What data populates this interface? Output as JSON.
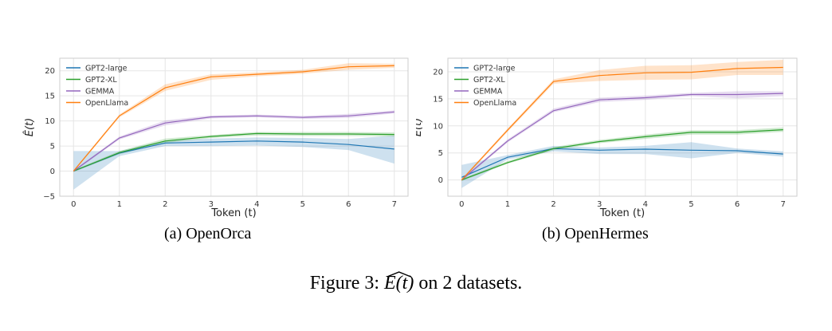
{
  "figure": {
    "caption_prefix": "Figure 3:",
    "caption_math": "E(t)",
    "caption_suffix": "on 2 datasets."
  },
  "chart_data": [
    {
      "type": "line",
      "subcaption": "(a) OpenOrca",
      "xlabel": "Token (t)",
      "ylabel": "Ê(t)",
      "x": [
        0,
        1,
        2,
        3,
        4,
        5,
        6,
        7
      ],
      "xlim": [
        -0.3,
        7.3
      ],
      "ylim": [
        -5,
        22.5
      ],
      "yticks": [
        -5,
        0,
        5,
        10,
        15,
        20
      ],
      "yticklabels": [
        "−5",
        "0",
        "5",
        "10",
        "15",
        "20"
      ],
      "xticks": [
        0,
        1,
        2,
        3,
        4,
        5,
        6,
        7
      ],
      "grid": true,
      "legend": "top-left",
      "series": [
        {
          "name": "GPT2-large",
          "color": "#1f77b4",
          "values": [
            0,
            3.6,
            5.6,
            5.8,
            6.0,
            5.8,
            5.3,
            4.4
          ],
          "lower": [
            -3.7,
            3.0,
            5.0,
            5.0,
            5.1,
            4.8,
            4.2,
            1.5
          ],
          "upper": [
            4.0,
            4.0,
            6.1,
            6.5,
            6.7,
            6.6,
            6.4,
            7.1
          ]
        },
        {
          "name": "GPT2-XL",
          "color": "#2ca02c",
          "values": [
            0,
            3.7,
            6.0,
            6.9,
            7.5,
            7.4,
            7.4,
            7.3
          ],
          "lower": [
            -0.2,
            3.4,
            5.6,
            6.6,
            7.1,
            7.0,
            7.0,
            6.9
          ],
          "upper": [
            0.2,
            4.0,
            6.5,
            7.2,
            7.8,
            7.8,
            7.8,
            7.7
          ]
        },
        {
          "name": "GEMMA",
          "color": "#9467bd",
          "values": [
            0,
            6.6,
            9.6,
            10.8,
            11.0,
            10.7,
            11.0,
            11.8
          ],
          "lower": [
            -0.2,
            6.3,
            9.1,
            10.5,
            10.7,
            10.4,
            10.6,
            11.5
          ],
          "upper": [
            0.2,
            6.9,
            10.1,
            11.1,
            11.3,
            11.0,
            11.4,
            12.1
          ]
        },
        {
          "name": "OpenLlama",
          "color": "#ff7f0e",
          "values": [
            0,
            11.0,
            16.6,
            18.8,
            19.3,
            19.8,
            20.8,
            21.0
          ],
          "lower": [
            -0.2,
            10.7,
            16.0,
            18.2,
            18.9,
            19.4,
            20.2,
            20.6
          ],
          "upper": [
            0.2,
            11.3,
            17.3,
            19.3,
            19.7,
            20.2,
            21.5,
            21.4
          ]
        }
      ]
    },
    {
      "type": "line",
      "subcaption": "(b) OpenHermes",
      "xlabel": "Token (t)",
      "ylabel": "Ê(t)",
      "x": [
        0,
        1,
        2,
        3,
        4,
        5,
        6,
        7
      ],
      "xlim": [
        -0.3,
        7.3
      ],
      "ylim": [
        -3,
        22.5
      ],
      "yticks": [
        0,
        5,
        10,
        15,
        20
      ],
      "yticklabels": [
        "0",
        "5",
        "10",
        "15",
        "20"
      ],
      "xticks": [
        0,
        1,
        2,
        3,
        4,
        5,
        6,
        7
      ],
      "grid": true,
      "legend": "top-left",
      "series": [
        {
          "name": "GPT2-large",
          "color": "#1f77b4",
          "values": [
            0.5,
            4.2,
            5.8,
            5.5,
            5.7,
            5.5,
            5.4,
            4.8
          ],
          "lower": [
            -1.5,
            3.8,
            5.3,
            4.8,
            4.8,
            4.0,
            5.0,
            4.3
          ],
          "upper": [
            2.8,
            4.6,
            6.3,
            6.0,
            6.3,
            7.0,
            5.8,
            5.3
          ]
        },
        {
          "name": "GPT2-XL",
          "color": "#2ca02c",
          "values": [
            0,
            3.2,
            5.8,
            7.1,
            8.0,
            8.8,
            8.8,
            9.3
          ],
          "lower": [
            -0.2,
            3.0,
            5.5,
            6.8,
            7.6,
            8.4,
            8.4,
            8.9
          ],
          "upper": [
            0.2,
            3.5,
            6.1,
            7.4,
            8.4,
            9.2,
            9.2,
            9.7
          ]
        },
        {
          "name": "GEMMA",
          "color": "#9467bd",
          "values": [
            0,
            7.2,
            12.8,
            14.8,
            15.2,
            15.8,
            15.8,
            16.0
          ],
          "lower": [
            -0.2,
            6.9,
            12.5,
            14.4,
            14.8,
            15.5,
            15.1,
            15.5
          ],
          "upper": [
            0.2,
            7.5,
            13.2,
            15.2,
            15.6,
            16.1,
            16.4,
            16.4
          ]
        },
        {
          "name": "OpenLlama",
          "color": "#ff7f0e",
          "values": [
            0,
            9.2,
            18.2,
            19.3,
            19.8,
            19.9,
            20.6,
            20.8
          ],
          "lower": [
            -0.2,
            8.9,
            17.8,
            18.3,
            18.5,
            18.6,
            19.4,
            19.4
          ],
          "upper": [
            0.2,
            9.5,
            18.6,
            20.3,
            21.1,
            21.2,
            21.8,
            22.2
          ]
        }
      ]
    }
  ]
}
